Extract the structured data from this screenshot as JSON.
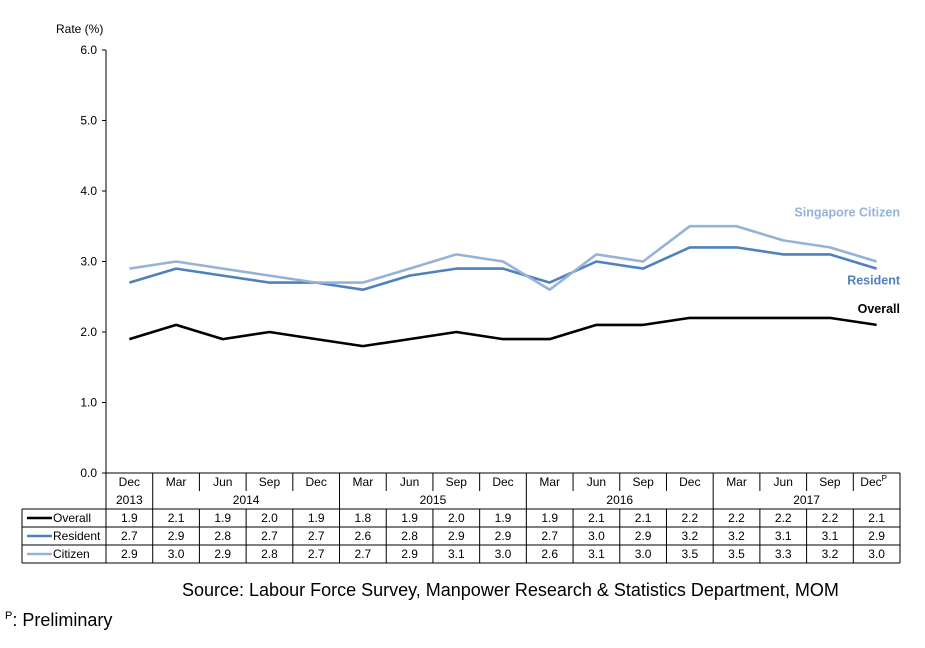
{
  "chart_data": {
    "type": "line",
    "ylabel": "Rate (%)",
    "ylim": [
      0,
      6
    ],
    "yticks": [
      "0.0",
      "1.0",
      "2.0",
      "3.0",
      "4.0",
      "5.0",
      "6.0"
    ],
    "categories": [
      "Dec",
      "Mar",
      "Jun",
      "Sep",
      "Dec",
      "Mar",
      "Jun",
      "Sep",
      "Dec",
      "Mar",
      "Jun",
      "Sep",
      "Dec",
      "Mar",
      "Jun",
      "Sep",
      "Dec"
    ],
    "last_category_superscript": "P",
    "years": [
      {
        "label": "2013",
        "from": 0,
        "to": 0
      },
      {
        "label": "2014",
        "from": 1,
        "to": 4
      },
      {
        "label": "2015",
        "from": 5,
        "to": 8
      },
      {
        "label": "2016",
        "from": 9,
        "to": 12
      },
      {
        "label": "2017",
        "from": 13,
        "to": 16
      }
    ],
    "grid": false,
    "series": [
      {
        "name": "Overall",
        "chart_label": "Overall",
        "color": "#000000",
        "values": [
          1.9,
          2.1,
          1.9,
          2.0,
          1.9,
          1.8,
          1.9,
          2.0,
          1.9,
          1.9,
          2.1,
          2.1,
          2.2,
          2.2,
          2.2,
          2.2,
          2.1
        ],
        "labels": [
          "1.9",
          "2.1",
          "1.9",
          "2.0",
          "1.9",
          "1.8",
          "1.9",
          "2.0",
          "1.9",
          "1.9",
          "2.1",
          "2.1",
          "2.2",
          "2.2",
          "2.2",
          "2.2",
          "2.1"
        ]
      },
      {
        "name": "Resident",
        "chart_label": "Resident",
        "color": "#4f81bd",
        "values": [
          2.7,
          2.9,
          2.8,
          2.7,
          2.7,
          2.6,
          2.8,
          2.9,
          2.9,
          2.7,
          3.0,
          2.9,
          3.2,
          3.2,
          3.1,
          3.1,
          2.9
        ],
        "labels": [
          "2.7",
          "2.9",
          "2.8",
          "2.7",
          "2.7",
          "2.6",
          "2.8",
          "2.9",
          "2.9",
          "2.7",
          "3.0",
          "2.9",
          "3.2",
          "3.2",
          "3.1",
          "3.1",
          "2.9"
        ]
      },
      {
        "name": "Citizen",
        "chart_label": "Singapore Citizen",
        "color": "#95b3d7",
        "values": [
          2.9,
          3.0,
          2.9,
          2.8,
          2.7,
          2.7,
          2.9,
          3.1,
          3.0,
          2.6,
          3.1,
          3.0,
          3.5,
          3.5,
          3.3,
          3.2,
          3.0
        ],
        "labels": [
          "2.9",
          "3.0",
          "2.9",
          "2.8",
          "2.7",
          "2.7",
          "2.9",
          "3.1",
          "3.0",
          "2.6",
          "3.1",
          "3.0",
          "3.5",
          "3.5",
          "3.3",
          "3.2",
          "3.0"
        ]
      }
    ]
  },
  "source": "Source: Labour Force Survey, Manpower Research & Statistics Department, MOM",
  "footnote": {
    "mark": "P",
    "text": ": Preliminary"
  }
}
